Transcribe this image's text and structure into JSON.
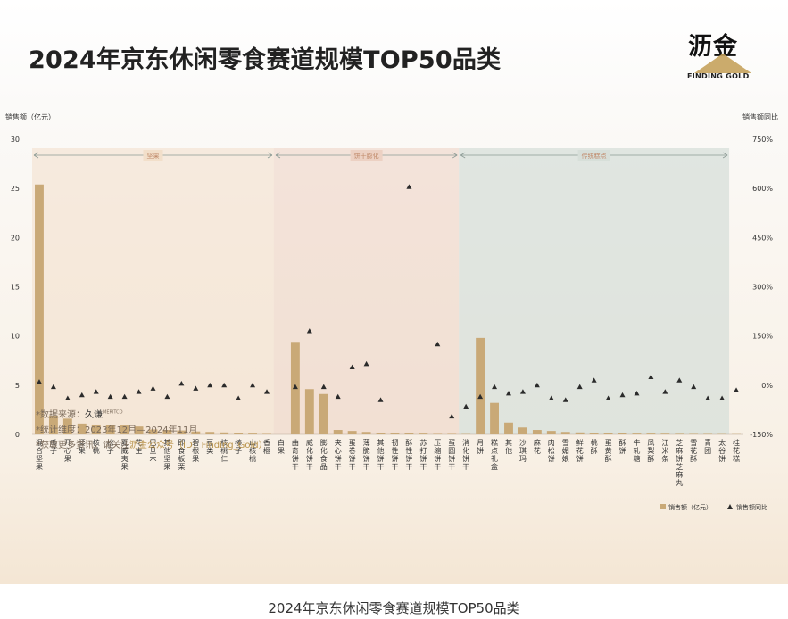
{
  "title": "2024年京东休闲零食赛道规模TOP50品类",
  "logo": {
    "cn": "沥金",
    "en": "FINDING GOLD"
  },
  "caption": "2024年京东休闲零食赛道规模TOP50品类",
  "footnotes": {
    "source_label": "*数据来源：",
    "source_brand": "久谦",
    "source_sup": "MERITCO",
    "period": "*统计维度：2023年12月—2024年11月",
    "more_prefix": "*获取更多资讯，请关注",
    "more_highlight": "沥金公众号（ID：Finding_Gold）"
  },
  "colors": {
    "bar": "#c9a977",
    "marker": "#2b2b2b",
    "nuts_bg": "#f2dfca",
    "biscuit_bg": "#ecd1c3",
    "pastry_bg": "#d7dfd9",
    "arrow": "#8c9b95"
  },
  "chart_data": {
    "type": "bar",
    "title": "2024年京东休闲零食赛道规模TOP50品类",
    "ylabel": "销售额（亿元）",
    "y2label": "销售额同比",
    "ylim": [
      0,
      30
    ],
    "y2lim": [
      -150,
      750
    ],
    "yticks": [
      "0",
      "5",
      "10",
      "15",
      "20",
      "25",
      "30"
    ],
    "y2ticks": [
      "-150%",
      "0%",
      "150%",
      "300%",
      "450%",
      "600%",
      "750%"
    ],
    "legend": [
      "销售额（亿元）",
      "销售额同比"
    ],
    "legend_position": "bottom-right",
    "groups": [
      {
        "name": "坚果",
        "start": 0,
        "end": 16
      },
      {
        "name": "饼干膨化",
        "start": 17,
        "end": 29
      },
      {
        "name": "传统糕点",
        "start": 30,
        "end": 48
      }
    ],
    "categories": [
      "混合坚果",
      "瓜子",
      "开心果",
      "腰果",
      "核桃",
      "松子",
      "夏威夷果",
      "花生",
      "巴旦木",
      "其他坚果",
      "即食板栗",
      "碧根果",
      "豆类",
      "核桃仁",
      "榛子",
      "山核桃",
      "香榧",
      "白果",
      "曲奇饼干",
      "威化饼干",
      "膨化食品",
      "夹心饼干",
      "蛋卷饼干",
      "薄脆饼干",
      "其他饼干",
      "韧性饼干",
      "酥性饼干",
      "苏打饼干",
      "压缩饼干",
      "蛋圆饼干",
      "消化饼干",
      "月饼",
      "糕点礼盒",
      "其他",
      "沙琪玛",
      "麻花",
      "肉松饼",
      "雪媚娘",
      "鲜花饼",
      "桃酥",
      "蛋黄酥",
      "酥饼",
      "牛轧糖",
      "凤梨酥",
      "江米条",
      "芝麻饼芝麻丸",
      "雪花酥",
      "青团",
      "太谷饼",
      "桂花糕"
    ],
    "series": [
      {
        "name": "销售额（亿元）",
        "axis": "left",
        "values": [
          25.4,
          1.9,
          1.6,
          1.1,
          1.0,
          0.95,
          0.9,
          0.8,
          0.5,
          0.45,
          0.4,
          0.3,
          0.25,
          0.2,
          0.15,
          0.08,
          0.05,
          0,
          9.4,
          4.6,
          4.1,
          0.45,
          0.35,
          0.25,
          0.15,
          0.1,
          0.1,
          0.08,
          0.05,
          0.05,
          0.04,
          9.8,
          3.2,
          1.2,
          0.7,
          0.45,
          0.35,
          0.25,
          0.2,
          0.15,
          0.12,
          0.1,
          0.08,
          0.08,
          0.07,
          0.06,
          0.05,
          0.05,
          0.04,
          0.03
        ]
      },
      {
        "name": "销售额同比",
        "axis": "right",
        "values": [
          10,
          -5,
          -40,
          -30,
          -20,
          -35,
          -35,
          -20,
          -10,
          -35,
          5,
          -10,
          0,
          0,
          -40,
          0,
          -20,
          null,
          -5,
          165,
          -5,
          -35,
          55,
          65,
          -45,
          null,
          605,
          null,
          125,
          -95,
          -65,
          -35,
          -5,
          -25,
          -20,
          0,
          -40,
          -45,
          -5,
          15,
          -40,
          -30,
          -25,
          25,
          -20,
          15,
          -5,
          -40,
          -40,
          -15
        ]
      }
    ]
  }
}
